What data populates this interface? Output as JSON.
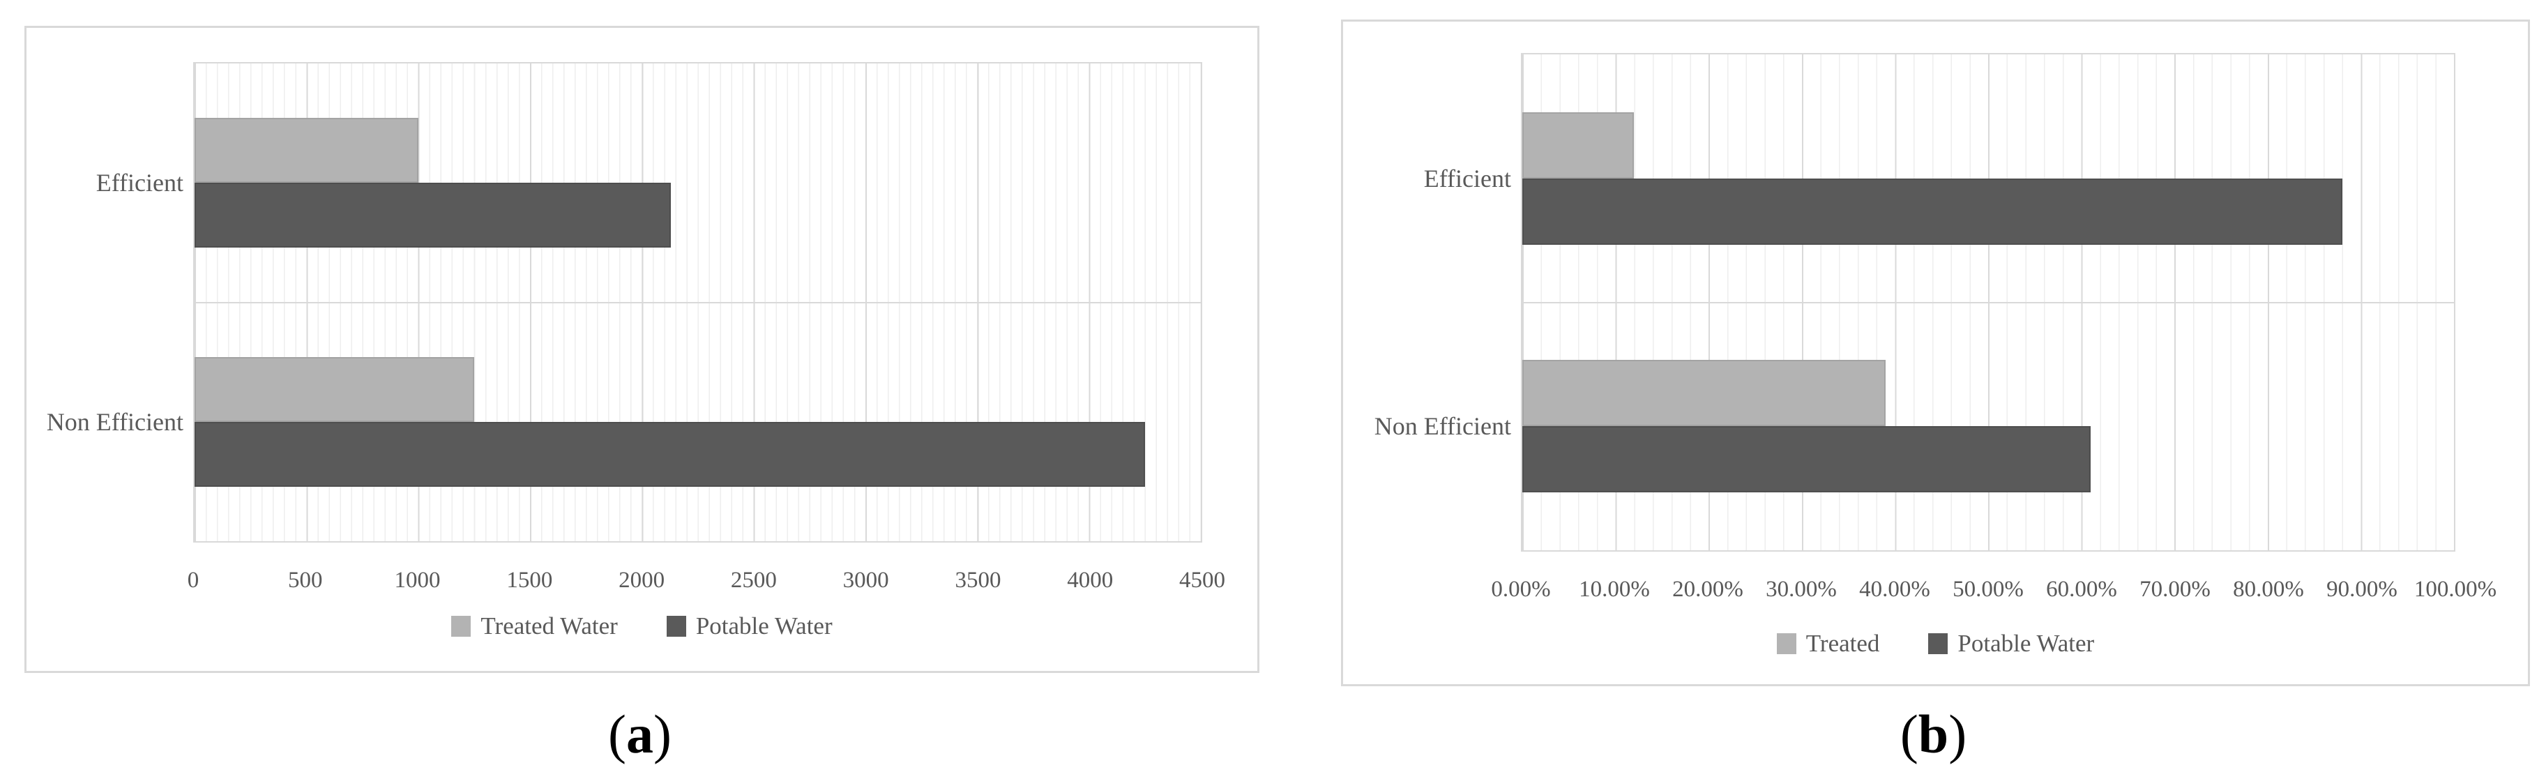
{
  "palette": {
    "treated_color": "#b3b3b3",
    "potable_color": "#5a5a5a",
    "grid_major": "#d9d9d9",
    "grid_minor": "#eeeeee",
    "panel_border": "#d9d9d9",
    "text_color": "#595959"
  },
  "chart_data": [
    {
      "type": "bar",
      "orientation": "horizontal",
      "caption": "(a)",
      "caption_letter": "a",
      "categories": [
        "Efficient",
        "Non Efficient"
      ],
      "series": [
        {
          "name": "Treated Water",
          "color": "#b3b3b3",
          "values": [
            1000,
            1250
          ]
        },
        {
          "name": "Potable Water",
          "color": "#5a5a5a",
          "values": [
            2130,
            4250
          ]
        }
      ],
      "xmax": 4500,
      "xmin": 0,
      "tick_labels": [
        "0",
        "500",
        "1000",
        "1500",
        "2000",
        "2500",
        "3000",
        "3500",
        "4000",
        "4500"
      ],
      "minor_grid_step": 50,
      "major_grid_step": 500,
      "legend_position": "bottom",
      "grid": "on"
    },
    {
      "type": "bar",
      "orientation": "horizontal",
      "caption": "(b)",
      "caption_letter": "b",
      "categories": [
        "Efficient",
        "Non Efficient"
      ],
      "series": [
        {
          "name": "Treated",
          "color": "#b3b3b3",
          "values": [
            12,
            39
          ]
        },
        {
          "name": "Potable Water",
          "color": "#5a5a5a",
          "values": [
            88,
            61
          ]
        }
      ],
      "xmax": 100,
      "xmin": 0,
      "tick_labels": [
        "0.00%",
        "10.00%",
        "20.00%",
        "30.00%",
        "40.00%",
        "50.00%",
        "60.00%",
        "70.00%",
        "80.00%",
        "90.00%",
        "100.00%"
      ],
      "minor_grid_step": 2,
      "major_grid_step": 10,
      "legend_position": "bottom",
      "grid": "on"
    }
  ]
}
